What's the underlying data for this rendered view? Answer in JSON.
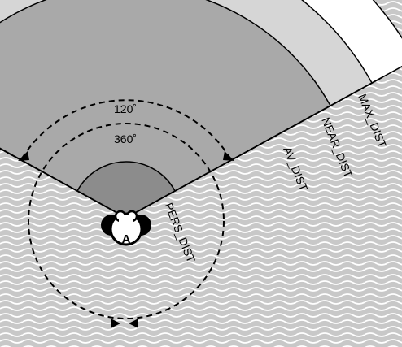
{
  "diagram": {
    "agent_label": "A",
    "zones": [
      {
        "label": "PERS_DIST",
        "fill": "#8c8c8c"
      },
      {
        "label": "AV_DIST",
        "fill": "#a9a9a9"
      },
      {
        "label": "NEAR_DIST",
        "fill": "#d6d6d6"
      },
      {
        "label": "MAX_DIST",
        "fill": "#ffffff"
      }
    ],
    "view_angles": {
      "narrow": "120˚",
      "wide": "360˚"
    },
    "colors": {
      "wave_background": "#c8c8c8",
      "wave_line": "#ffffff",
      "outline": "#000000"
    }
  }
}
